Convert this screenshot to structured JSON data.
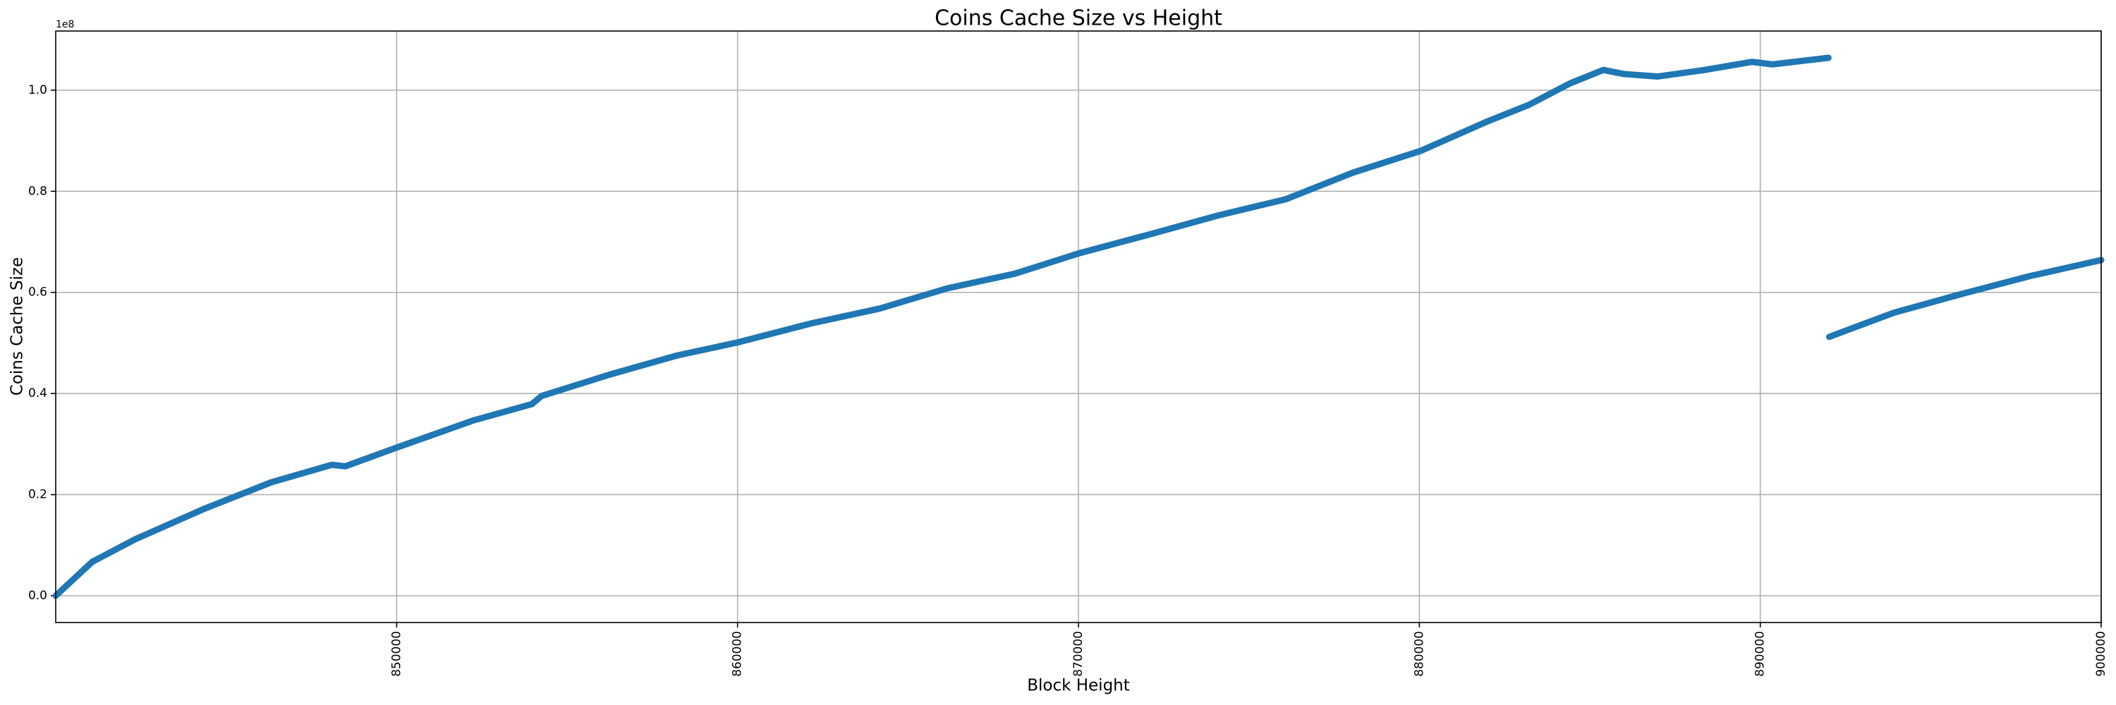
{
  "chart_data": {
    "type": "line",
    "title": "Coins Cache Size vs Height",
    "xlabel": "Block Height",
    "ylabel": "Coins Cache Size",
    "y_offset_label": "1e8",
    "xlim": [
      840000,
      900000
    ],
    "ylim": [
      -5300000,
      111700000
    ],
    "xticks": [
      850000,
      860000,
      870000,
      880000,
      890000,
      900000
    ],
    "yticks": [
      {
        "value": 0,
        "label": "0.0"
      },
      {
        "value": 20000000,
        "label": "0.2"
      },
      {
        "value": 40000000,
        "label": "0.4"
      },
      {
        "value": 60000000,
        "label": "0.6"
      },
      {
        "value": 80000000,
        "label": "0.8"
      },
      {
        "value": 100000000,
        "label": "1.0"
      }
    ],
    "grid": true,
    "x": [
      840000,
      841071,
      842341,
      844325,
      846310,
      848095,
      848492,
      850000,
      852262,
      853968,
      854246,
      856230,
      858214,
      860000,
      862183,
      864167,
      866151,
      868135,
      870000,
      872103,
      874087,
      876071,
      878056,
      880040,
      882024,
      883214,
      884405,
      885397,
      885992,
      886984,
      888373,
      889762,
      890357,
      892000,
      892010,
      892024,
      893929,
      895913,
      897897,
      900000
    ],
    "series": [
      {
        "name": "Coins Cache Size",
        "color": "#1f77b4",
        "values": [
          0,
          6700000,
          11200000,
          17100000,
          22400000,
          25900000,
          25600000,
          29300000,
          34700000,
          37900000,
          39500000,
          43700000,
          47500000,
          50100000,
          53900000,
          56800000,
          60800000,
          63700000,
          67700000,
          71500000,
          75200000,
          78400000,
          83700000,
          88000000,
          93900000,
          97100000,
          101300000,
          104000000,
          103200000,
          102700000,
          104000000,
          105600000,
          105100000,
          106400000,
          null,
          51200000,
          56000000,
          59700000,
          63200000,
          66400000
        ]
      }
    ]
  }
}
